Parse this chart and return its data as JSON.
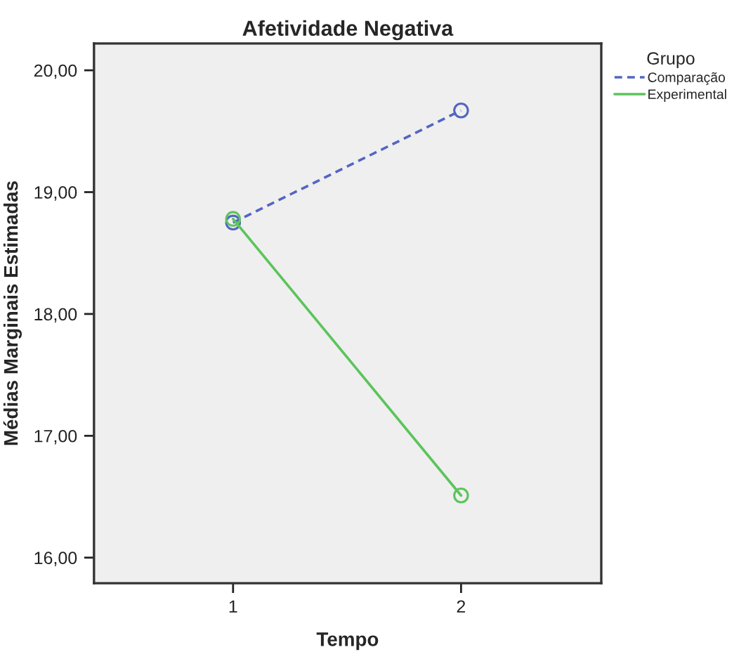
{
  "chart_data": {
    "type": "line",
    "title": "Afetividade Negativa",
    "xlabel": "Tempo",
    "ylabel": "Médias Marginais Estimadas",
    "legend_title": "Grupo",
    "categories": [
      "1",
      "2"
    ],
    "series": [
      {
        "name": "Comparação",
        "color": "#5465c2",
        "values": [
          18.75,
          19.67
        ],
        "line_style": "dashed"
      },
      {
        "name": "Experimental",
        "color": "#5cc45c",
        "values": [
          18.78,
          16.51
        ],
        "line_style": "solid"
      }
    ],
    "ylim": [
      15.79,
      20.22
    ],
    "yticks": [
      {
        "value": 16,
        "label": "16,00"
      },
      {
        "value": 17,
        "label": "17,00"
      },
      {
        "value": 18,
        "label": "18,00"
      },
      {
        "value": 19,
        "label": "19,00"
      },
      {
        "value": 20,
        "label": "20,00"
      }
    ],
    "marker": "circle",
    "legend": "right",
    "grid": false
  }
}
